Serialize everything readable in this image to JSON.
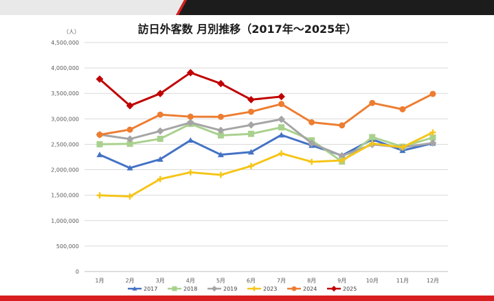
{
  "chart_data": {
    "type": "line",
    "title": "訪日外客数 月別推移（2017年～2025年）",
    "y_unit_label": "（人）",
    "categories": [
      "1月",
      "2月",
      "3月",
      "4月",
      "5月",
      "6月",
      "7月",
      "8月",
      "9月",
      "10月",
      "11月",
      "12月"
    ],
    "ylim": [
      0,
      4500000
    ],
    "y_ticks": [
      0,
      500000,
      1000000,
      1500000,
      2000000,
      2500000,
      3000000,
      3500000,
      4000000,
      4500000
    ],
    "y_tick_labels": [
      "0",
      "500,000",
      "1,000,000",
      "1,500,000",
      "2,000,000",
      "2,500,000",
      "3,000,000",
      "3,500,000",
      "4,000,000",
      "4,500,000"
    ],
    "grid": true,
    "legend_position": "bottom",
    "series": [
      {
        "name": "2017",
        "color": "#4472c4",
        "marker": "triangle",
        "values": [
          2295000,
          2035000,
          2206000,
          2579000,
          2295000,
          2347000,
          2683000,
          2478000,
          2280000,
          2596000,
          2378000,
          2521000
        ]
      },
      {
        "name": "2018",
        "color": "#a9d18e",
        "marker": "square",
        "values": [
          2501000,
          2509000,
          2608000,
          2901000,
          2675000,
          2705000,
          2833000,
          2578000,
          2160000,
          2641000,
          2452000,
          2633000
        ]
      },
      {
        "name": "2019",
        "color": "#a5a5a5",
        "marker": "diamond",
        "values": [
          2689000,
          2604000,
          2760000,
          2927000,
          2773000,
          2880000,
          2991000,
          2520000,
          2273000,
          2497000,
          2441000,
          2526000
        ]
      },
      {
        "name": "2023",
        "color": "#f5c518",
        "marker": "plus",
        "values": [
          1497000,
          1475000,
          1817000,
          1949000,
          1899000,
          2073000,
          2320000,
          2156000,
          2183000,
          2516000,
          2440000,
          2734000
        ]
      },
      {
        "name": "2024",
        "color": "#ed7d31",
        "marker": "circle",
        "values": [
          2688000,
          2788000,
          3082000,
          3043000,
          3040000,
          3140000,
          3292000,
          2932000,
          2872000,
          3312000,
          3188000,
          3490000
        ]
      },
      {
        "name": "2025",
        "color": "#c00000",
        "marker": "diamond",
        "values": [
          3781000,
          3258000,
          3497000,
          3908000,
          3693000,
          3377000,
          3437000,
          null,
          null,
          null,
          null,
          null
        ]
      }
    ]
  }
}
